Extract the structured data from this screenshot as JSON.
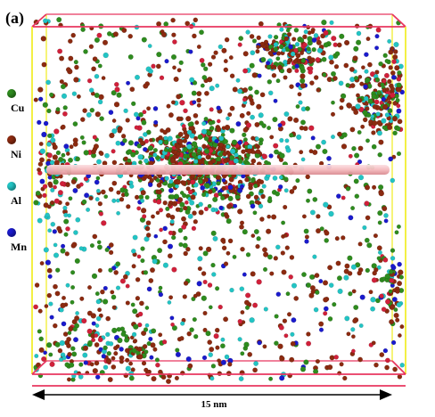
{
  "panel_label": "(a)",
  "legend": [
    {
      "label": "Cu",
      "color": "#2e8b1e"
    },
    {
      "label": "Ni",
      "color": "#8b2a10"
    },
    {
      "label": "Al",
      "color": "#22c4c4"
    },
    {
      "label": "Mn",
      "color": "#1a1acc"
    }
  ],
  "scale_bar": {
    "label": "15 nm"
  },
  "colors": {
    "box_front_edges": "#e8365f",
    "box_side_edges": "#f2ee30",
    "red_atoms": "#d0203a",
    "rod": "#f4b8bc"
  }
}
